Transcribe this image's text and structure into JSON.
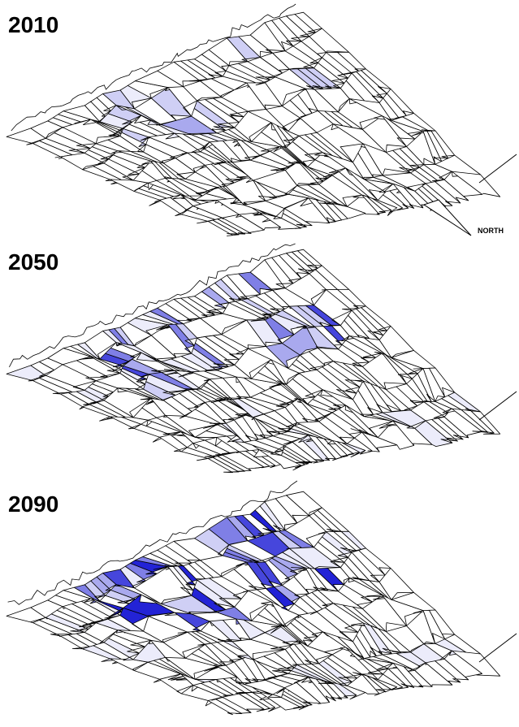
{
  "panels": [
    {
      "year": "2010"
    },
    {
      "year": "2050"
    },
    {
      "year": "2090"
    }
  ],
  "north_arrow": {
    "label": "NORTH"
  }
}
